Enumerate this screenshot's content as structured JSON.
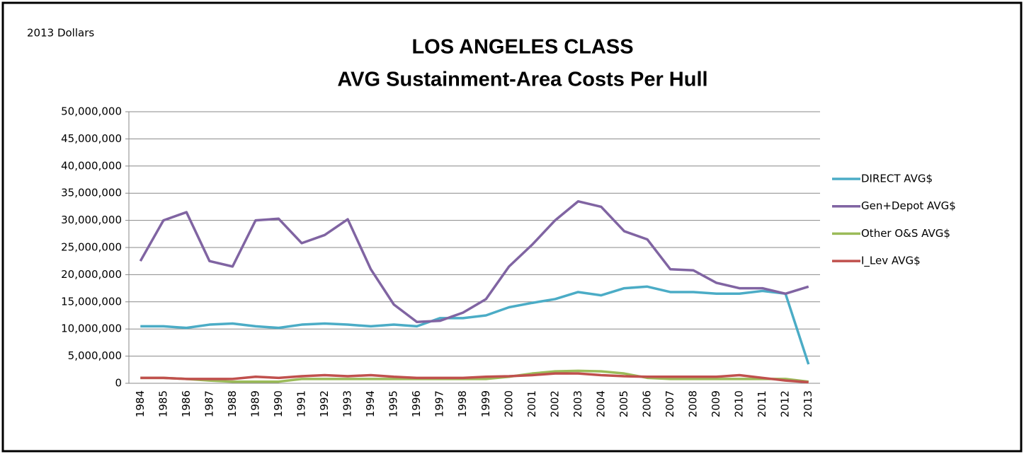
{
  "chart_data": {
    "type": "line",
    "title": "LOS ANGELES CLASS",
    "subtitle": "AVG Sustainment-Area Costs Per Hull",
    "annotation": "2013 Dollars",
    "categories": [
      "1984",
      "1985",
      "1986",
      "1987",
      "1988",
      "1989",
      "1990",
      "1991",
      "1992",
      "1993",
      "1994",
      "1995",
      "1996",
      "1997",
      "1998",
      "1999",
      "2000",
      "2001",
      "2002",
      "2003",
      "2004",
      "2005",
      "2006",
      "2007",
      "2008",
      "2009",
      "2010",
      "2011",
      "2012",
      "2013"
    ],
    "series": [
      {
        "name": "DIRECT AVG$",
        "color": "#4bacc6",
        "values": [
          10500000,
          10500000,
          10200000,
          10800000,
          11000000,
          10500000,
          10200000,
          10800000,
          11000000,
          10800000,
          10500000,
          10800000,
          10500000,
          12000000,
          12000000,
          12500000,
          14000000,
          14800000,
          15500000,
          16800000,
          16200000,
          17500000,
          17800000,
          16800000,
          16800000,
          16500000,
          16500000,
          17000000,
          16500000,
          3500000
        ]
      },
      {
        "name": "Gen+Depot AVG$",
        "color": "#8064a2",
        "values": [
          22500000,
          30000000,
          31500000,
          22500000,
          21500000,
          30000000,
          30300000,
          25800000,
          27300000,
          30200000,
          21000000,
          14500000,
          11300000,
          11500000,
          13000000,
          15500000,
          21500000,
          25500000,
          30000000,
          33500000,
          32500000,
          28000000,
          26500000,
          21000000,
          20800000,
          18500000,
          17500000,
          17500000,
          16500000,
          17800000
        ]
      },
      {
        "name": "Other O&S AVG$",
        "color": "#9bbb59",
        "values": [
          1000000,
          1000000,
          800000,
          500000,
          300000,
          300000,
          300000,
          800000,
          800000,
          800000,
          800000,
          800000,
          800000,
          800000,
          800000,
          800000,
          1200000,
          1800000,
          2200000,
          2300000,
          2200000,
          1800000,
          1000000,
          800000,
          800000,
          800000,
          800000,
          800000,
          800000,
          300000
        ]
      },
      {
        "name": "I_Lev AVG$",
        "color": "#c0504d",
        "values": [
          1000000,
          1000000,
          800000,
          800000,
          800000,
          1200000,
          1000000,
          1300000,
          1500000,
          1300000,
          1500000,
          1200000,
          1000000,
          1000000,
          1000000,
          1200000,
          1300000,
          1500000,
          1800000,
          1800000,
          1500000,
          1300000,
          1200000,
          1200000,
          1200000,
          1200000,
          1500000,
          1000000,
          500000,
          200000
        ]
      }
    ],
    "ylim": [
      0,
      50000000
    ],
    "yticks": [
      {
        "value": 0,
        "label": "0"
      },
      {
        "value": 5000000,
        "label": "5,000,000"
      },
      {
        "value": 10000000,
        "label": "10,000,000"
      },
      {
        "value": 15000000,
        "label": "15,000,000"
      },
      {
        "value": 20000000,
        "label": "20,000,000"
      },
      {
        "value": 25000000,
        "label": "25,000,000"
      },
      {
        "value": 30000000,
        "label": "30,000,000"
      },
      {
        "value": 35000000,
        "label": "35,000,000"
      },
      {
        "value": 40000000,
        "label": "40,000,000"
      },
      {
        "value": 45000000,
        "label": "45,000,000"
      },
      {
        "value": 50000000,
        "label": "50,000,000"
      }
    ],
    "grid": true,
    "legend": "right"
  }
}
